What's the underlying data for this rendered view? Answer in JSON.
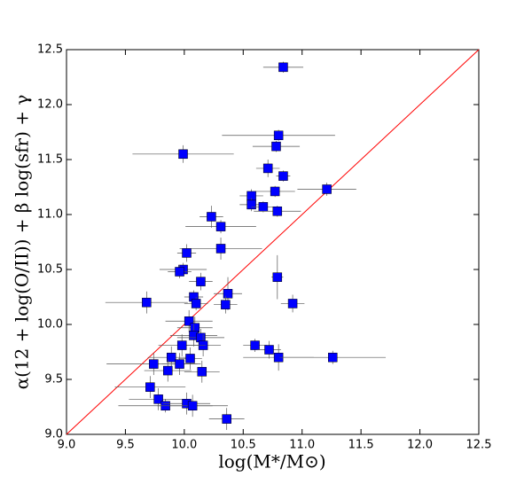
{
  "chart_data": {
    "type": "scatter",
    "x_label": "log(M*/M⊙)",
    "y_label": "α(12 + log(O/II)) + β log(sfr) + γ",
    "xlim": [
      9.0,
      12.5
    ],
    "ylim": [
      9.0,
      12.5
    ],
    "xticks": [
      {
        "value": 9.0,
        "label": "9.0"
      },
      9.5,
      {
        "value": 10.0,
        "label": "10.0"
      },
      10.5,
      {
        "value": 11.0,
        "label": "11.0"
      },
      11.5,
      {
        "value": 12.0,
        "label": "12.0"
      },
      12.5
    ],
    "yticks": [
      {
        "value": 9.0,
        "label": "9.0"
      },
      9.5,
      {
        "value": 10.0,
        "label": "10.0"
      },
      10.5,
      {
        "value": 11.0,
        "label": "11.0"
      },
      11.5,
      {
        "value": 12.0,
        "label": "12.0"
      },
      12.5
    ],
    "diagonal_color": "#ff0000",
    "error_color": "#555555",
    "series": [
      {
        "color": "#0000ff",
        "x": [
          10.84,
          10.8,
          9.99,
          10.78,
          10.71,
          10.84,
          11.21,
          10.77,
          10.57,
          10.57,
          10.67,
          10.79,
          10.23,
          10.31,
          10.31,
          10.02,
          9.99,
          9.96,
          10.79,
          10.14,
          10.37,
          10.08,
          9.68,
          10.1,
          10.35,
          10.92,
          10.04,
          10.09,
          10.08,
          10.14,
          10.16,
          9.98,
          10.6,
          10.72,
          10.8,
          11.26,
          9.89,
          10.05,
          9.74,
          9.96,
          9.86,
          10.15,
          9.71,
          9.78,
          9.84,
          10.02,
          10.07,
          10.36
        ],
        "values": [
          12.34,
          11.72,
          11.55,
          11.62,
          11.42,
          11.35,
          11.23,
          11.21,
          11.17,
          11.09,
          11.07,
          11.03,
          10.98,
          10.89,
          10.69,
          10.65,
          10.5,
          10.48,
          10.43,
          10.39,
          10.28,
          10.25,
          10.2,
          10.19,
          10.18,
          10.19,
          10.03,
          9.97,
          9.9,
          9.88,
          9.81,
          9.81,
          9.81,
          9.77,
          9.7,
          9.7,
          9.7,
          9.69,
          9.64,
          9.64,
          9.58,
          9.57,
          9.43,
          9.32,
          9.26,
          9.28,
          9.26,
          9.14
        ],
        "xerr": [
          0.17,
          0.48,
          0.43,
          0.2,
          0.1,
          0.06,
          0.25,
          0.17,
          0.1,
          0.1,
          0.1,
          0.2,
          0.1,
          0.3,
          0.35,
          0.08,
          0.2,
          0.1,
          0.05,
          0.1,
          0.12,
          0.08,
          0.35,
          0.1,
          0.1,
          0.1,
          0.2,
          0.15,
          0.2,
          0.2,
          0.15,
          0.2,
          0.1,
          0.1,
          0.3,
          0.45,
          0.2,
          0.1,
          0.4,
          0.15,
          0.2,
          0.15,
          0.3,
          0.25,
          0.4,
          0.2,
          0.3,
          0.15
        ],
        "yerr": [
          0.05,
          0.05,
          0.08,
          0.05,
          0.08,
          0.05,
          0.06,
          0.05,
          0.06,
          0.06,
          0.05,
          0.05,
          0.1,
          0.06,
          0.1,
          0.08,
          0.06,
          0.06,
          0.2,
          0.08,
          0.15,
          0.06,
          0.1,
          0.06,
          0.08,
          0.08,
          0.1,
          0.1,
          0.1,
          0.08,
          0.1,
          0.1,
          0.06,
          0.08,
          0.12,
          0.06,
          0.1,
          0.1,
          0.1,
          0.1,
          0.1,
          0.1,
          0.1,
          0.1,
          0.06,
          0.1,
          0.1,
          0.1
        ]
      }
    ]
  }
}
